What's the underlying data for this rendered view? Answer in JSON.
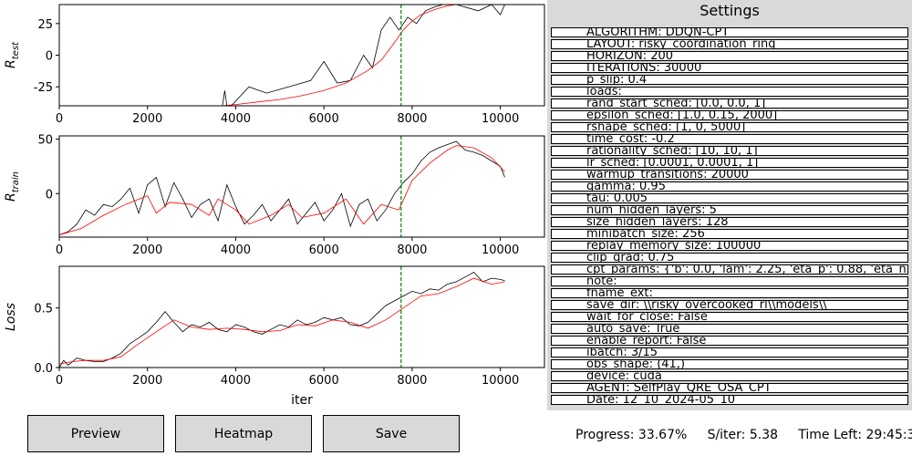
{
  "settings": {
    "title": "Settings",
    "items": [
      "ALGORITHM: DDQN-CPT",
      "LAYOUT: risky_coordination_ring",
      "HORIZON: 200",
      "ITERATIONS: 30000",
      "p_slip: 0.4",
      "loads:",
      "rand_start_sched: [0.0, 0.0, 1]",
      "epsilon_sched: [1.0, 0.15, 2000]",
      "rshape_sched: [1, 0, 5000]",
      "time_cost: -0.2",
      "rationality_sched: [10, 10, 1]",
      "lr_sched: [0.0001, 0.0001, 1]",
      "warmup_transitions: 20000",
      "gamma: 0.95",
      "tau: 0.005",
      "num_hidden_layers: 5",
      "size_hidden_layers: 128",
      "minibatch_size: 256",
      "replay_memory_size: 100000",
      "clip_grad: 0.75",
      "cpt_params: {'b': 0.0, 'lam': 2.25, 'eta_p': 0.88, 'eta_n': 0.88",
      "note:",
      "fname_ext:",
      "save_dir: \\\\risky_overcooked_rl\\\\models\\\\",
      "wait_for_close: False",
      "auto_save: True",
      "enable_report: False",
      "ibatch: 3/15",
      "obs_shape: (41,)",
      "device: cuda",
      "AGENT: SelfPlay_QRE_OSA_CPT",
      "Date: 12_10_2024-05_10"
    ]
  },
  "buttons": {
    "preview": "Preview",
    "heatmap": "Heatmap",
    "save": "Save"
  },
  "status": {
    "progress": "Progress: 33.67%",
    "s_per_iter": "S/iter: 5.38",
    "time_left": "Time Left: 29:45:37"
  },
  "chart_data": [
    {
      "type": "line",
      "ylabel": "R_test",
      "xlim": [
        0,
        11000
      ],
      "ylim": [
        -40,
        40
      ],
      "xticks": [
        0,
        2000,
        4000,
        6000,
        8000,
        10000
      ],
      "yticks": [
        -25,
        0,
        25
      ],
      "vline_x": 7750,
      "raw_color": "#000000",
      "smooth_color": "#ff0000",
      "vline_color": "#008000",
      "raw": {
        "x": [
          0,
          3700,
          3750,
          3800,
          3900,
          4300,
          4700,
          5200,
          5700,
          6000,
          6300,
          6600,
          6900,
          7100,
          7300,
          7500,
          7700,
          7900,
          8100,
          8300,
          8500,
          8700,
          9000,
          9500,
          9800,
          10000,
          10100
        ],
        "y": [
          -40,
          -40,
          -28,
          -40,
          -40,
          -25,
          -30,
          -25,
          -20,
          -5,
          -22,
          -20,
          0,
          -10,
          20,
          30,
          20,
          30,
          25,
          35,
          38,
          40,
          40,
          35,
          40,
          32,
          40
        ]
      },
      "smooth": {
        "x": [
          0,
          3700,
          4000,
          4500,
          5000,
          5500,
          6000,
          6500,
          7000,
          7300,
          7600,
          7800,
          8000,
          8200,
          8500,
          8800,
          9000,
          10100
        ],
        "y": [
          -40,
          -40,
          -39,
          -37,
          -35,
          -32,
          -28,
          -22,
          -12,
          -4,
          10,
          20,
          27,
          32,
          36,
          39,
          40,
          40
        ]
      }
    },
    {
      "type": "line",
      "ylabel": "R_train",
      "xlim": [
        0,
        11000
      ],
      "ylim": [
        -40,
        53
      ],
      "xticks": [
        0,
        2000,
        4000,
        6000,
        8000,
        10000
      ],
      "yticks": [
        0,
        50
      ],
      "vline_x": 7750,
      "raw_color": "#000000",
      "smooth_color": "#ff0000",
      "vline_color": "#008000",
      "raw": {
        "x": [
          0,
          200,
          400,
          600,
          800,
          1000,
          1200,
          1400,
          1600,
          1800,
          2000,
          2200,
          2400,
          2600,
          2800,
          3000,
          3200,
          3400,
          3600,
          3800,
          4000,
          4200,
          4400,
          4600,
          4800,
          5000,
          5200,
          5400,
          5600,
          5800,
          6000,
          6200,
          6400,
          6600,
          6800,
          7000,
          7200,
          7400,
          7600,
          7800,
          8000,
          8200,
          8400,
          8600,
          8800,
          9000,
          9200,
          9400,
          9600,
          9800,
          10000,
          10100
        ],
        "y": [
          -38,
          -35,
          -28,
          -15,
          -20,
          -10,
          -12,
          -5,
          5,
          -18,
          8,
          15,
          -12,
          10,
          -5,
          -22,
          -10,
          -5,
          -25,
          8,
          -12,
          -28,
          -20,
          -10,
          -25,
          -15,
          -5,
          -28,
          -18,
          -8,
          -25,
          -15,
          0,
          -30,
          -10,
          -5,
          -25,
          -15,
          0,
          10,
          18,
          30,
          38,
          42,
          45,
          48,
          40,
          38,
          35,
          30,
          25,
          15
        ]
      },
      "smooth": {
        "x": [
          0,
          500,
          1000,
          1500,
          2000,
          2200,
          2500,
          3000,
          3400,
          3600,
          4000,
          4300,
          4800,
          5200,
          5500,
          6000,
          6500,
          6900,
          7300,
          7700,
          8000,
          8400,
          8800,
          9000,
          9400,
          9800,
          10100
        ],
        "y": [
          -38,
          -32,
          -20,
          -10,
          -2,
          -18,
          -8,
          -10,
          -20,
          -5,
          -15,
          -28,
          -20,
          -10,
          -22,
          -18,
          -5,
          -28,
          -10,
          -15,
          12,
          28,
          40,
          44,
          42,
          33,
          20
        ]
      }
    },
    {
      "type": "line",
      "xlabel": "iter",
      "ylabel": "Loss",
      "xlim": [
        0,
        11000
      ],
      "ylim": [
        0,
        0.85
      ],
      "xticks": [
        0,
        2000,
        4000,
        6000,
        8000,
        10000
      ],
      "yticks": [
        0,
        0.5
      ],
      "vline_x": 7750,
      "raw_color": "#000000",
      "smooth_color": "#ff0000",
      "vline_color": "#008000",
      "raw": {
        "x": [
          0,
          100,
          200,
          400,
          600,
          800,
          1000,
          1200,
          1400,
          1600,
          1800,
          2000,
          2200,
          2400,
          2600,
          2800,
          3000,
          3200,
          3400,
          3600,
          3800,
          4000,
          4200,
          4400,
          4600,
          4800,
          5000,
          5200,
          5400,
          5600,
          5800,
          6000,
          6200,
          6400,
          6600,
          6800,
          7000,
          7200,
          7400,
          7600,
          7800,
          8000,
          8200,
          8400,
          8600,
          8800,
          9000,
          9200,
          9400,
          9600,
          9800,
          10000,
          10100
        ],
        "y": [
          0.0,
          0.06,
          0.02,
          0.08,
          0.06,
          0.05,
          0.05,
          0.08,
          0.12,
          0.2,
          0.25,
          0.3,
          0.38,
          0.47,
          0.38,
          0.3,
          0.36,
          0.34,
          0.38,
          0.32,
          0.3,
          0.36,
          0.34,
          0.3,
          0.28,
          0.32,
          0.36,
          0.34,
          0.4,
          0.36,
          0.38,
          0.42,
          0.4,
          0.42,
          0.36,
          0.35,
          0.38,
          0.45,
          0.52,
          0.56,
          0.6,
          0.64,
          0.62,
          0.66,
          0.65,
          0.7,
          0.72,
          0.76,
          0.8,
          0.72,
          0.75,
          0.74,
          0.73
        ]
      },
      "smooth": {
        "x": [
          0,
          300,
          600,
          1000,
          1400,
          1800,
          2200,
          2600,
          3000,
          3400,
          3800,
          4200,
          4600,
          5000,
          5400,
          5800,
          6200,
          6600,
          7000,
          7400,
          7800,
          8200,
          8600,
          9000,
          9400,
          9800,
          10100
        ],
        "y": [
          0.03,
          0.05,
          0.06,
          0.06,
          0.09,
          0.2,
          0.3,
          0.4,
          0.34,
          0.32,
          0.33,
          0.32,
          0.3,
          0.31,
          0.36,
          0.35,
          0.4,
          0.38,
          0.33,
          0.4,
          0.5,
          0.6,
          0.62,
          0.68,
          0.75,
          0.7,
          0.72
        ]
      }
    }
  ]
}
